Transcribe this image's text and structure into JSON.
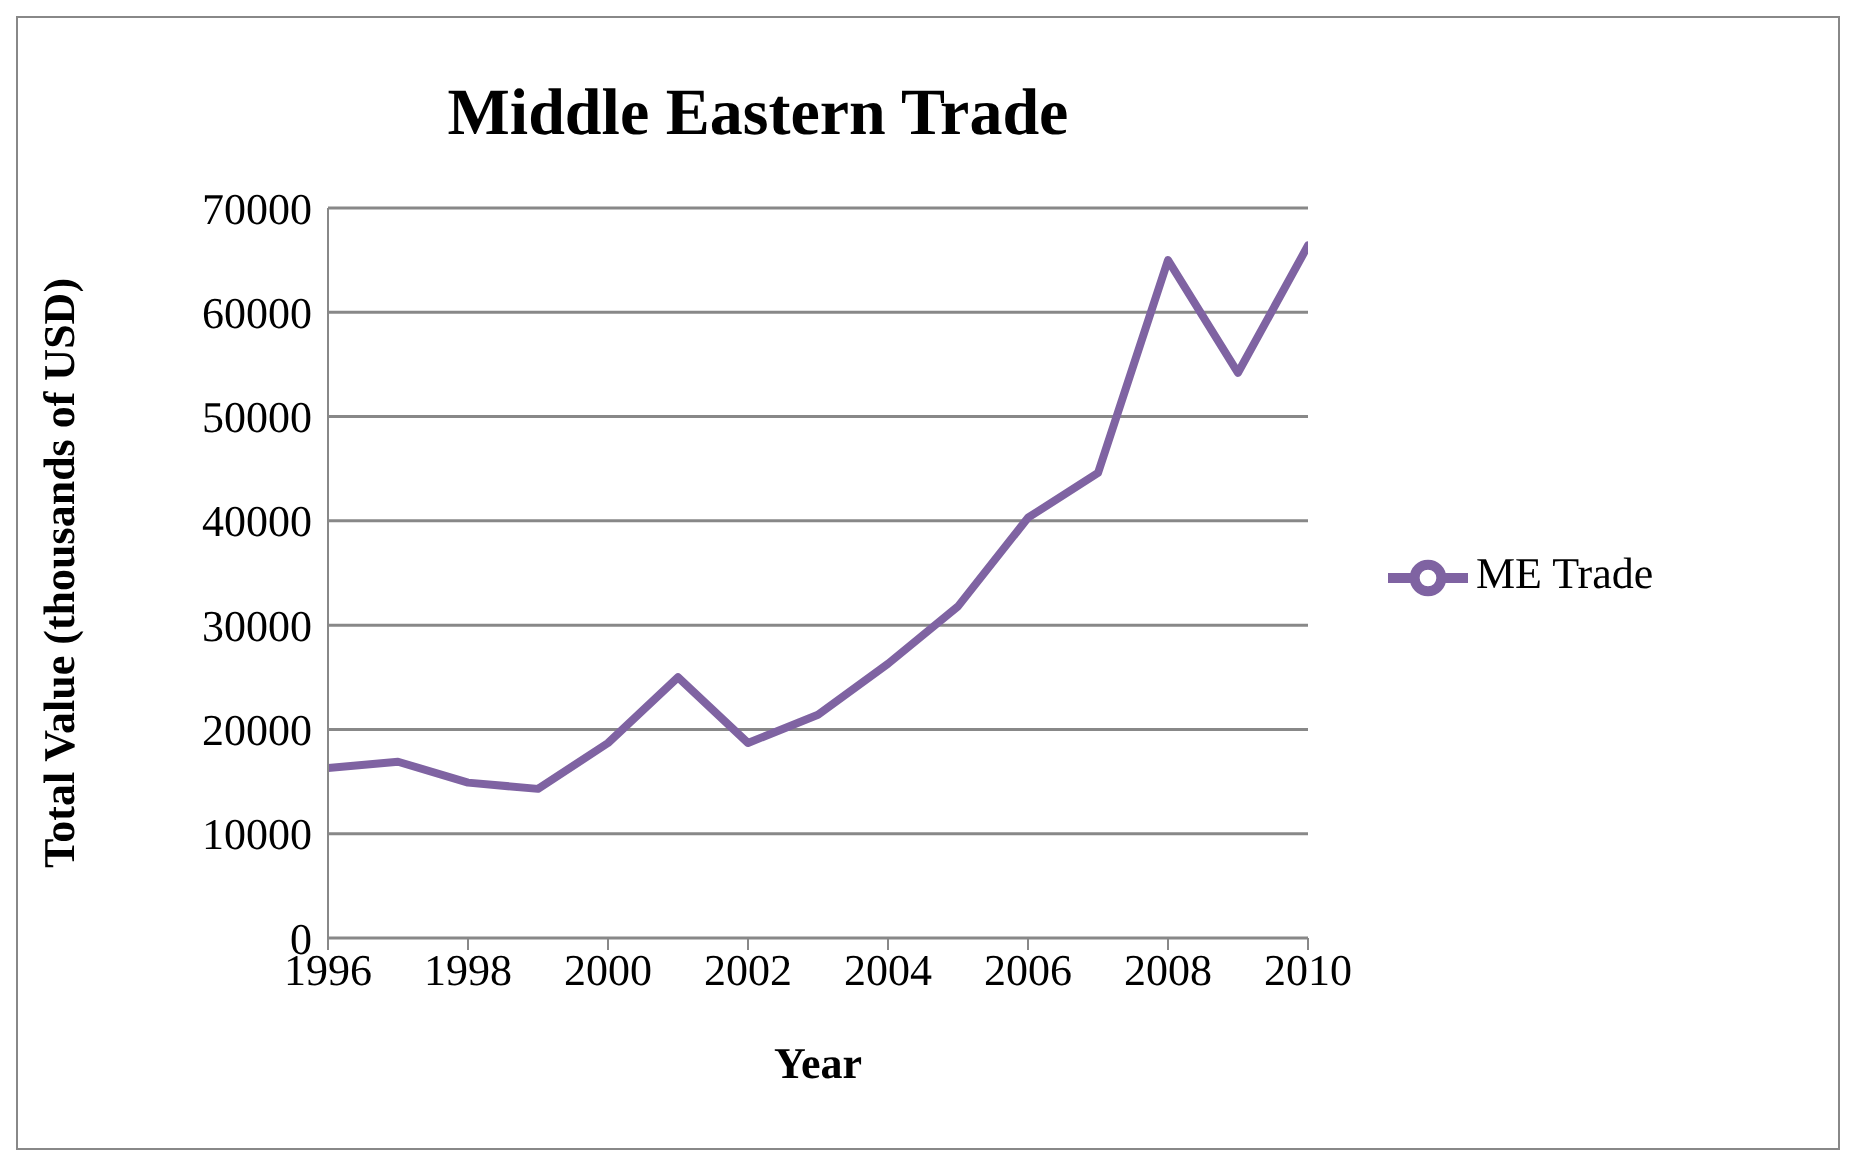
{
  "chart_data": {
    "type": "line",
    "title": "Middle Eastern Trade",
    "xlabel": "Year",
    "ylabel": "Total Value (thousands of USD)",
    "x": [
      1996,
      1997,
      1998,
      1999,
      2000,
      2001,
      2002,
      2003,
      2004,
      2005,
      2006,
      2007,
      2008,
      2009,
      2010
    ],
    "series": [
      {
        "name": "ME Trade",
        "color": "#7f63a2",
        "values": [
          16300,
          16900,
          14900,
          14300,
          18700,
          25000,
          18700,
          21400,
          26300,
          31800,
          40300,
          44600,
          65000,
          54200,
          66400
        ]
      }
    ],
    "xlim": [
      1996,
      2010
    ],
    "xticks": [
      1996,
      1998,
      2000,
      2002,
      2004,
      2006,
      2008,
      2010
    ],
    "ylim": [
      0,
      70000
    ],
    "yticks": [
      0,
      10000,
      20000,
      30000,
      40000,
      50000,
      60000,
      70000
    ],
    "grid": "y",
    "legend": "right",
    "marker": "none",
    "line_style": "solid"
  }
}
